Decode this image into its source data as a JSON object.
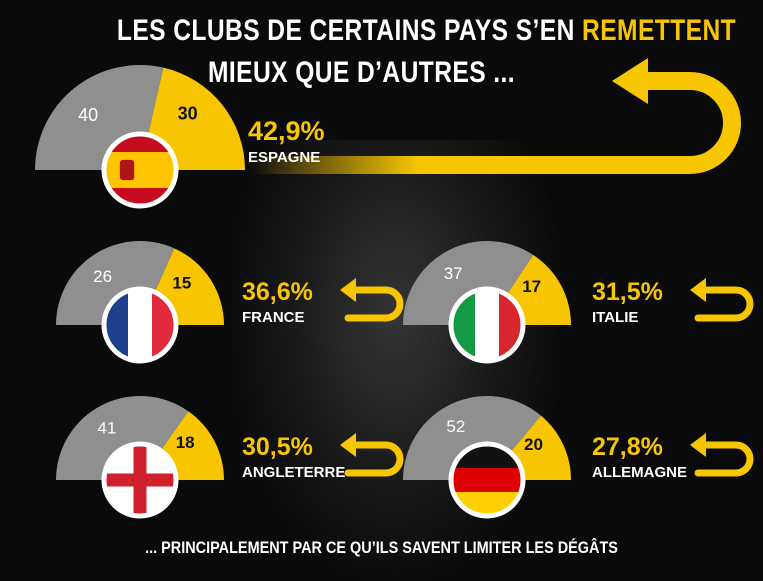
{
  "header": {
    "line1_part1": "LES CLUBS DE CERTAINS PAYS S’EN ",
    "line1_highlight": "REMETTENT",
    "line2": "MIEUX QUE D’AUTRES ..."
  },
  "footer": {
    "text": "... PRINCIPALEMENT PAR CE QU’ILS SAVENT LIMITER LES DÉGÂTS"
  },
  "colors": {
    "gray": "#8f8f8f",
    "yellow": "#f7c600",
    "background": "#0a0a0a"
  },
  "chart_data": [
    {
      "type": "pie",
      "country": "ESPAGNE",
      "flag": "spain-flag",
      "values": [
        40,
        30
      ],
      "percent_label": "42,9%"
    },
    {
      "type": "pie",
      "country": "FRANCE",
      "flag": "france-flag",
      "values": [
        26,
        15
      ],
      "percent_label": "36,6%"
    },
    {
      "type": "pie",
      "country": "ITALIE",
      "flag": "italy-flag",
      "values": [
        37,
        17
      ],
      "percent_label": "31,5%"
    },
    {
      "type": "pie",
      "country": "ANGLETERRE",
      "flag": "england-flag",
      "values": [
        41,
        18
      ],
      "percent_label": "30,5%"
    },
    {
      "type": "pie",
      "country": "ALLEMAGNE",
      "flag": "germany-flag",
      "values": [
        52,
        20
      ],
      "percent_label": "27,8%"
    }
  ]
}
